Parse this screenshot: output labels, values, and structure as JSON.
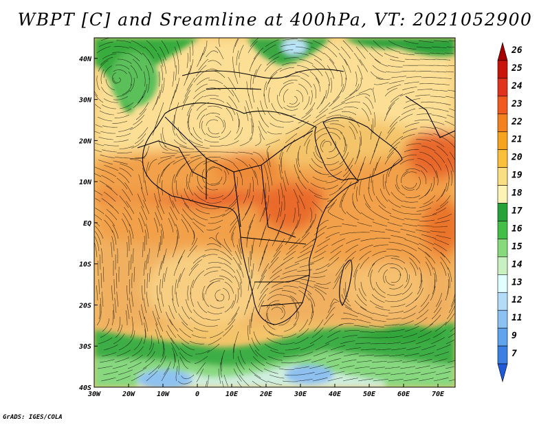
{
  "title": "WBPT [C] and Sreamline at 400hPa, VT: 2021052900",
  "credit": "GrADS: IGES/COLA",
  "map": {
    "lon_range": [
      -30,
      75
    ],
    "lat_range": [
      -40,
      45
    ],
    "lon_ticks": [
      {
        "value": -30,
        "label": "30W"
      },
      {
        "value": -20,
        "label": "20W"
      },
      {
        "value": -10,
        "label": "10W"
      },
      {
        "value": 0,
        "label": "0"
      },
      {
        "value": 10,
        "label": "10E"
      },
      {
        "value": 20,
        "label": "20E"
      },
      {
        "value": 30,
        "label": "30E"
      },
      {
        "value": 40,
        "label": "40E"
      },
      {
        "value": 50,
        "label": "50E"
      },
      {
        "value": 60,
        "label": "60E"
      },
      {
        "value": 70,
        "label": "70E"
      }
    ],
    "lat_ticks": [
      {
        "value": 40,
        "label": "40N"
      },
      {
        "value": 30,
        "label": "30N"
      },
      {
        "value": 20,
        "label": "20N"
      },
      {
        "value": 10,
        "label": "10N"
      },
      {
        "value": 0,
        "label": "EQ"
      },
      {
        "value": -10,
        "label": "10S"
      },
      {
        "value": -20,
        "label": "20S"
      },
      {
        "value": -30,
        "label": "30S"
      },
      {
        "value": -40,
        "label": "40S"
      }
    ],
    "vortices": [
      {
        "name": "atlantic-north-gyre",
        "lon": -23,
        "lat": 35,
        "sign": 1
      },
      {
        "name": "sahara-high",
        "lon": 5,
        "lat": 23,
        "sign": -1
      },
      {
        "name": "west-africa-gyre",
        "lon": 5,
        "lat": 12,
        "sign": 1
      },
      {
        "name": "arabian-high",
        "lon": 38,
        "lat": 19,
        "sign": -1
      },
      {
        "name": "arabian-sea-gyre",
        "lon": 62,
        "lat": 10,
        "sign": 1
      },
      {
        "name": "south-atlantic-high",
        "lon": 7,
        "lat": -18,
        "sign": 1
      },
      {
        "name": "indian-ocean-high",
        "lon": 57,
        "lat": -13,
        "sign": -1
      },
      {
        "name": "south-africa-gyre",
        "lon": 23,
        "lat": -22,
        "sign": -1
      },
      {
        "name": "east-med-eddy",
        "lon": 28,
        "lat": 30,
        "sign": 1
      }
    ]
  },
  "colorbar": {
    "levels": [
      "26",
      "25",
      "24",
      "23",
      "22",
      "21",
      "20",
      "19",
      "18",
      "17",
      "16",
      "15",
      "14",
      "13",
      "12",
      "11",
      "9",
      "7"
    ],
    "colors": [
      "#a50000",
      "#c8140a",
      "#e0321c",
      "#f05a1e",
      "#f3821e",
      "#f7a31e",
      "#fac03c",
      "#fadf82",
      "#fdf3b4",
      "#27a236",
      "#43bf48",
      "#87d97c",
      "#c8f0c0",
      "#e1ffff",
      "#b3dcf8",
      "#8cc1f4",
      "#5fa4ec",
      "#3a7fe1",
      "#1e5ad7"
    ]
  }
}
